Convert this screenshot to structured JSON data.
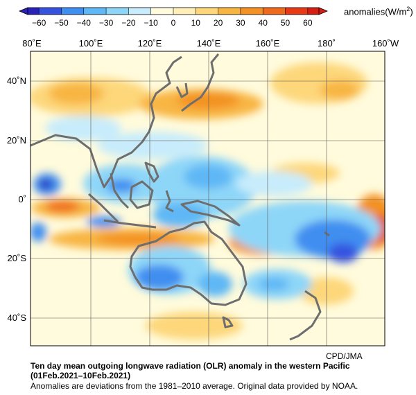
{
  "colorbar": {
    "ticks": [
      "−60",
      "−50",
      "−40",
      "−30",
      "−20",
      "−10",
      "0",
      "10",
      "20",
      "30",
      "40",
      "50",
      "60"
    ],
    "colors": [
      "#2a21b8",
      "#3553e0",
      "#3f8ef0",
      "#5fb8f5",
      "#8ed6f8",
      "#c8ecfb",
      "#fffbdc",
      "#fef0b8",
      "#fdd77a",
      "#f8b542",
      "#f39124",
      "#ef6a1c",
      "#e83a16",
      "#d61e12"
    ],
    "units_prefix": "anomalies(W/m",
    "units_sup": "2",
    "units_suffix": ")"
  },
  "map": {
    "lon_labels": [
      "80˚E",
      "100˚E",
      "120˚E",
      "140˚E",
      "160˚E",
      "180˚",
      "160˚W"
    ],
    "lat_labels": [
      "40˚N",
      "20˚N",
      "0˚",
      "20˚S",
      "40˚S"
    ],
    "lon_range": [
      80,
      200
    ],
    "lat_range": [
      -50,
      50
    ],
    "grid": true
  },
  "credit": "CPD/JMA",
  "caption": {
    "title": "Ten day mean outgoing longwave radiation (OLR) anomaly in the western Pacific",
    "period": "(01Feb.2021–10Feb.2021)",
    "note": "Anomalies are deviations from the 1981–2010 average. Original data provided by NOAA."
  }
}
